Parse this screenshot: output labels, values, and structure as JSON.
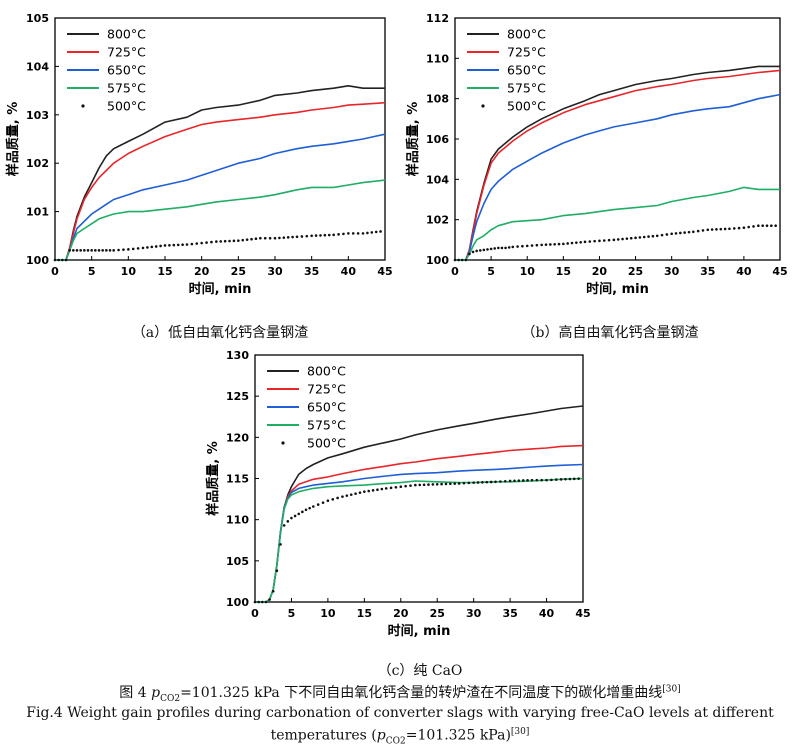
{
  "colors": {
    "800": "#222222",
    "725": "#e8262a",
    "650": "#1f5fd6",
    "575": "#1fae63",
    "500": "#111111"
  },
  "chart_data": [
    {
      "id": "a",
      "type": "line",
      "caption": "（a）低自由氧化钙含量钢渣",
      "xlabel": "时间, min",
      "ylabel": "样品质量, %",
      "xlim": [
        0,
        45
      ],
      "ylim": [
        100,
        105
      ],
      "xticks": [
        0,
        5,
        10,
        15,
        20,
        25,
        30,
        35,
        40,
        45
      ],
      "yticks": [
        100,
        101,
        102,
        103,
        104,
        105
      ],
      "legend_position": "top-left",
      "x": [
        0,
        1.5,
        2,
        2.5,
        3,
        4,
        5,
        6,
        7,
        8,
        10,
        12,
        15,
        18,
        20,
        22,
        25,
        28,
        30,
        33,
        35,
        38,
        40,
        42,
        45
      ],
      "series": [
        {
          "name": "800°C",
          "values": [
            100,
            100,
            100.25,
            100.6,
            100.9,
            101.3,
            101.6,
            101.9,
            102.15,
            102.3,
            102.45,
            102.6,
            102.85,
            102.95,
            103.1,
            103.15,
            103.2,
            103.3,
            103.4,
            103.45,
            103.5,
            103.55,
            103.6,
            103.55,
            103.55
          ]
        },
        {
          "name": "725°C",
          "values": [
            100,
            100,
            100.25,
            100.55,
            100.85,
            101.25,
            101.5,
            101.7,
            101.85,
            102.0,
            102.2,
            102.35,
            102.55,
            102.7,
            102.8,
            102.85,
            102.9,
            102.95,
            103.0,
            103.05,
            103.1,
            103.15,
            103.2,
            103.22,
            103.25
          ]
        },
        {
          "name": "650°C",
          "values": [
            100,
            100,
            100.2,
            100.45,
            100.65,
            100.8,
            100.95,
            101.05,
            101.15,
            101.25,
            101.35,
            101.45,
            101.55,
            101.65,
            101.75,
            101.85,
            102.0,
            102.1,
            102.2,
            102.3,
            102.35,
            102.4,
            102.45,
            102.5,
            102.6
          ]
        },
        {
          "name": "575°C",
          "values": [
            100,
            100,
            100.2,
            100.4,
            100.55,
            100.65,
            100.75,
            100.85,
            100.9,
            100.95,
            101.0,
            101.0,
            101.05,
            101.1,
            101.15,
            101.2,
            101.25,
            101.3,
            101.35,
            101.45,
            101.5,
            101.5,
            101.55,
            101.6,
            101.65
          ]
        },
        {
          "name": "500°C",
          "values": [
            100,
            100,
            100.2,
            100.2,
            100.2,
            100.2,
            100.2,
            100.2,
            100.2,
            100.2,
            100.22,
            100.25,
            100.3,
            100.32,
            100.35,
            100.38,
            100.4,
            100.45,
            100.45,
            100.48,
            100.5,
            100.52,
            100.55,
            100.55,
            100.6
          ]
        }
      ]
    },
    {
      "id": "b",
      "type": "line",
      "caption": "（b）高自由氧化钙含量钢渣",
      "xlabel": "时间, min",
      "ylabel": "样品质量, %",
      "xlim": [
        0,
        45
      ],
      "ylim": [
        100,
        112
      ],
      "xticks": [
        0,
        5,
        10,
        15,
        20,
        25,
        30,
        35,
        40,
        45
      ],
      "yticks": [
        100,
        102,
        104,
        106,
        108,
        110,
        112
      ],
      "legend_position": "top-left",
      "x": [
        0,
        1.5,
        2,
        2.5,
        3,
        4,
        5,
        6,
        7,
        8,
        10,
        12,
        15,
        18,
        20,
        22,
        25,
        28,
        30,
        33,
        35,
        38,
        40,
        42,
        45
      ],
      "series": [
        {
          "name": "800°C",
          "values": [
            100,
            100,
            100.5,
            101.5,
            102.4,
            103.8,
            105.0,
            105.5,
            105.8,
            106.1,
            106.6,
            107.0,
            107.5,
            107.9,
            108.2,
            108.4,
            108.7,
            108.9,
            109.0,
            109.2,
            109.3,
            109.4,
            109.5,
            109.6,
            109.6
          ]
        },
        {
          "name": "725°C",
          "values": [
            100,
            100,
            100.5,
            101.4,
            102.3,
            103.7,
            104.8,
            105.3,
            105.6,
            105.9,
            106.4,
            106.8,
            107.3,
            107.7,
            107.9,
            108.1,
            108.4,
            108.6,
            108.7,
            108.9,
            109.0,
            109.1,
            109.2,
            109.3,
            109.4
          ]
        },
        {
          "name": "650°C",
          "values": [
            100,
            100,
            100.4,
            101.2,
            101.9,
            102.8,
            103.5,
            103.9,
            104.2,
            104.5,
            104.9,
            105.3,
            105.8,
            106.2,
            106.4,
            106.6,
            106.8,
            107.0,
            107.2,
            107.4,
            107.5,
            107.6,
            107.8,
            108.0,
            108.2
          ]
        },
        {
          "name": "575°C",
          "values": [
            100,
            100,
            100.3,
            100.7,
            101.0,
            101.2,
            101.5,
            101.7,
            101.8,
            101.9,
            101.95,
            102.0,
            102.2,
            102.3,
            102.4,
            102.5,
            102.6,
            102.7,
            102.9,
            103.1,
            103.2,
            103.4,
            103.6,
            103.5,
            103.5
          ]
        },
        {
          "name": "500°C",
          "values": [
            100,
            100,
            100.3,
            100.4,
            100.45,
            100.5,
            100.55,
            100.6,
            100.6,
            100.65,
            100.7,
            100.75,
            100.8,
            100.9,
            100.95,
            101.0,
            101.1,
            101.2,
            101.3,
            101.4,
            101.5,
            101.55,
            101.6,
            101.7,
            101.7
          ]
        }
      ]
    },
    {
      "id": "c",
      "type": "line",
      "caption": "（c）纯 CaO",
      "xlabel": "时间, min",
      "ylabel": "样品质量, %",
      "xlim": [
        0,
        45
      ],
      "ylim": [
        100,
        130
      ],
      "xticks": [
        0,
        5,
        10,
        15,
        20,
        25,
        30,
        35,
        40,
        45
      ],
      "yticks": [
        100,
        105,
        110,
        115,
        120,
        125,
        130
      ],
      "legend_position": "top-left",
      "x": [
        0,
        1.5,
        2,
        2.5,
        3,
        3.5,
        4,
        4.5,
        5,
        6,
        7,
        8,
        10,
        12,
        15,
        18,
        20,
        22,
        25,
        28,
        30,
        33,
        35,
        38,
        40,
        42,
        45
      ],
      "series": [
        {
          "name": "800°C",
          "values": [
            100,
            100,
            100.3,
            101.5,
            104.5,
            108.5,
            111.5,
            113.0,
            114.0,
            115.5,
            116.2,
            116.7,
            117.5,
            118.0,
            118.8,
            119.4,
            119.8,
            120.3,
            120.9,
            121.4,
            121.7,
            122.2,
            122.5,
            122.9,
            123.2,
            123.5,
            123.8
          ]
        },
        {
          "name": "725°C",
          "values": [
            100,
            100,
            100.3,
            101.5,
            104.5,
            108.5,
            111.5,
            112.8,
            113.5,
            114.3,
            114.6,
            114.9,
            115.2,
            115.6,
            116.1,
            116.5,
            116.8,
            117.0,
            117.4,
            117.7,
            117.9,
            118.2,
            118.4,
            118.6,
            118.7,
            118.9,
            119.0
          ]
        },
        {
          "name": "650°C",
          "values": [
            100,
            100,
            100.3,
            101.5,
            104.5,
            108.5,
            111.5,
            112.6,
            113.3,
            113.8,
            114.0,
            114.2,
            114.4,
            114.6,
            115.0,
            115.3,
            115.5,
            115.6,
            115.7,
            115.9,
            116.0,
            116.1,
            116.2,
            116.4,
            116.5,
            116.6,
            116.7
          ]
        },
        {
          "name": "575°C",
          "values": [
            100,
            100,
            100.3,
            101.5,
            104.5,
            108.3,
            111.3,
            112.5,
            113.0,
            113.4,
            113.6,
            113.8,
            114.0,
            114.1,
            114.2,
            114.4,
            114.5,
            114.7,
            114.6,
            114.5,
            114.5,
            114.6,
            114.6,
            114.7,
            114.8,
            114.9,
            115.0
          ]
        },
        {
          "name": "500°C",
          "values": [
            100,
            100,
            100.3,
            101.3,
            103.8,
            107.0,
            109.3,
            109.8,
            110.2,
            110.7,
            111.2,
            111.6,
            112.3,
            112.8,
            113.4,
            113.8,
            114.0,
            114.2,
            114.3,
            114.4,
            114.5,
            114.6,
            114.7,
            114.8,
            114.8,
            114.9,
            115.0
          ]
        }
      ]
    }
  ],
  "figure_caption_cn": {
    "pre": "图 4 ",
    "p": "p",
    "sub": "CO2",
    "post": "=101.325 kPa 下不同自由氧化钙含量的转炉渣在不同温度下的碳化增重曲线",
    "ref": "[30]"
  },
  "figure_caption_en": {
    "line1": "Fig.4 Weight gain profiles during carbonation of converter slags with varying free-CaO levels at different",
    "line2_pre": "temperatures (",
    "p": "p",
    "sub": "CO2",
    "line2_post": "=101.325 kPa)",
    "ref": "[30]"
  }
}
